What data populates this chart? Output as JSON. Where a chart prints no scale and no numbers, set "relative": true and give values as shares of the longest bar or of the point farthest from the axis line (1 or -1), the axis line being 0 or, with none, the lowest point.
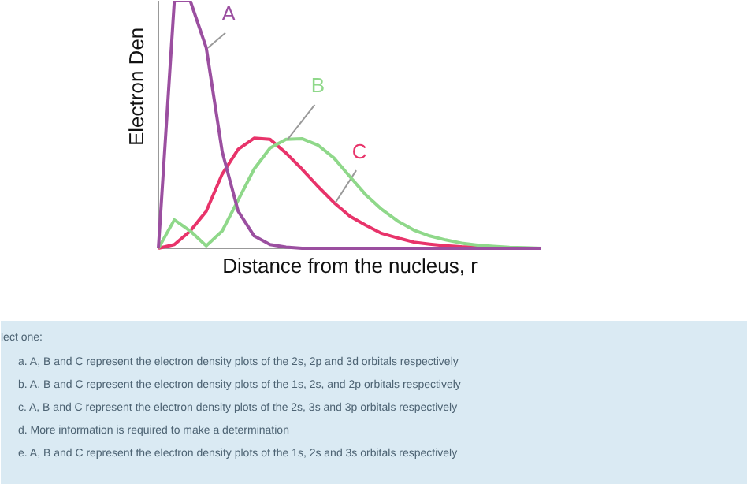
{
  "chart_data": {
    "type": "line",
    "relative": true,
    "xlabel": "Distance from the nucleus, r",
    "ylabel": "Electron Den",
    "categories": [
      null,
      null,
      null,
      null,
      null,
      null,
      null,
      null,
      null,
      null,
      null,
      null,
      null,
      null,
      null,
      null,
      null,
      null,
      null,
      null,
      null,
      null,
      null,
      null,
      null
    ],
    "series": [
      {
        "name": "A",
        "color": "#9b4fa0",
        "values": [
          0,
          1,
          1,
          0.81,
          0.39,
          0.15,
          0.05,
          0.015,
          0.005,
          0,
          0,
          0,
          0,
          0,
          0,
          0,
          0,
          0,
          0,
          0,
          0,
          0,
          0,
          0,
          0
        ]
      },
      {
        "name": "B",
        "color": "#8fd88a",
        "values": [
          0,
          0.115,
          0.07,
          0.01,
          0.07,
          0.195,
          0.32,
          0.405,
          0.44,
          0.443,
          0.417,
          0.365,
          0.29,
          0.216,
          0.157,
          0.11,
          0.074,
          0.05,
          0.034,
          0.021,
          0.013,
          0.008,
          0.004,
          0.002,
          0
        ]
      },
      {
        "name": "C",
        "color": "#e8336a",
        "values": [
          0,
          0.015,
          0.07,
          0.15,
          0.3,
          0.4,
          0.445,
          0.44,
          0.385,
          0.32,
          0.25,
          0.185,
          0.13,
          0.093,
          0.06,
          0.042,
          0.025,
          0.017,
          0.01,
          0.006,
          0.004,
          0.002,
          null,
          null,
          null
        ]
      }
    ],
    "annotations": [
      "lect one:",
      "a. A, B and C represent the electron density plots of the 2s, 2p and 3d orbitals respectively",
      "b. A, B and C represent the electron density plots of the 1s, 2s, and 2p orbitals respectively",
      "c. A, B and C represent the electron density plots of the 2s, 3s and 3p orbitals respectively",
      "d. More information is required to make a determination",
      "e. A, B and C represent the electron density plots of the 1s, 2s and 3s orbitals respectively"
    ]
  }
}
